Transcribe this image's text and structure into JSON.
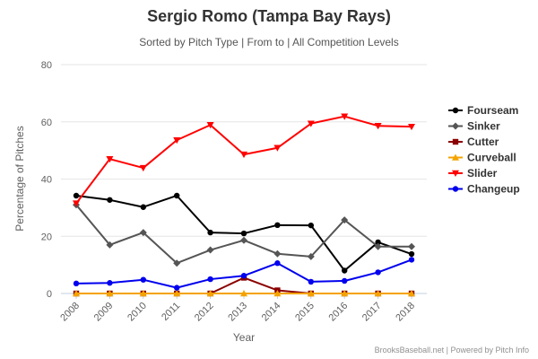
{
  "chart_data": {
    "type": "line",
    "title": "Sergio Romo (Tampa Bay Rays)",
    "subtitle": "Sorted by Pitch Type | From to | All Competition Levels",
    "xlabel": "Year",
    "ylabel": "Percentage of Pitches",
    "categories": [
      "2008",
      "2009",
      "2010",
      "2011",
      "2012",
      "2013",
      "2014",
      "2015",
      "2016",
      "2017",
      "2018"
    ],
    "ylim": [
      0,
      80
    ],
    "yticks": [
      0,
      20,
      40,
      60,
      80
    ],
    "grid": true,
    "legend_position": "right",
    "series": [
      {
        "name": "Fourseam",
        "color": "#000000",
        "marker": "circle",
        "values": [
          34.2,
          32.7,
          30.2,
          34.2,
          21.3,
          21.0,
          23.9,
          23.8,
          8.0,
          17.9,
          13.8
        ]
      },
      {
        "name": "Sinker",
        "color": "#555555",
        "marker": "diamond",
        "values": [
          31.0,
          17.0,
          21.3,
          10.6,
          15.2,
          18.6,
          13.9,
          12.9,
          25.7,
          16.4,
          16.4
        ]
      },
      {
        "name": "Cutter",
        "color": "#8b0000",
        "marker": "square",
        "values": [
          0,
          0,
          0,
          0,
          0,
          5.5,
          1.1,
          0,
          0,
          0,
          0
        ]
      },
      {
        "name": "Curveball",
        "color": "#f4a300",
        "marker": "triangle",
        "values": [
          0,
          0,
          0,
          0,
          0,
          0,
          0,
          0,
          0,
          0,
          0
        ]
      },
      {
        "name": "Slider",
        "color": "#ff0000",
        "marker": "triangle-down",
        "values": [
          31.5,
          47.0,
          43.9,
          53.6,
          58.9,
          48.6,
          50.9,
          59.4,
          61.9,
          58.6,
          58.3
        ]
      },
      {
        "name": "Changeup",
        "color": "#0000ee",
        "marker": "circle",
        "values": [
          3.5,
          3.7,
          4.8,
          2.0,
          5.0,
          6.2,
          10.6,
          4.1,
          4.4,
          7.4,
          11.8
        ]
      }
    ]
  },
  "credit": "BrooksBaseball.net | Powered by Pitch Info"
}
